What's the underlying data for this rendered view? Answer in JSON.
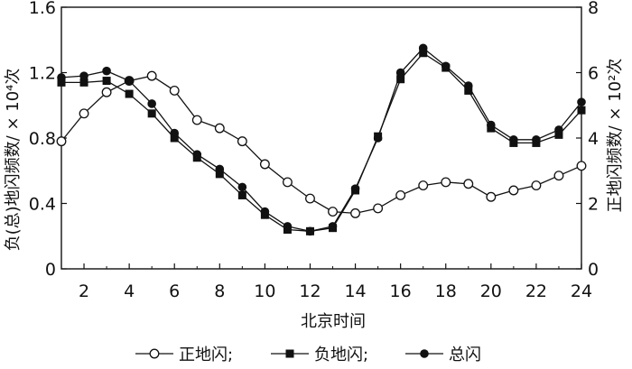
{
  "chart_data": {
    "type": "line",
    "title": "",
    "xlabel": "北京时间",
    "ylabel_left": "负(总)地闪频数/ × 10⁴次",
    "ylabel_right": "正地闪频数/ × 10²次",
    "xlim": [
      1,
      24
    ],
    "ylim_left": [
      0,
      1.6
    ],
    "ylim_right": [
      0,
      8
    ],
    "x_ticks": [
      2,
      4,
      6,
      8,
      10,
      12,
      14,
      16,
      18,
      20,
      22,
      24
    ],
    "x_tick_labels": [
      "2",
      "4",
      "6",
      "8",
      "10",
      "12",
      "14",
      "16",
      "18",
      "20",
      "22",
      "24"
    ],
    "y_left_ticks": [
      0,
      0.4,
      0.8,
      1.2,
      1.6
    ],
    "y_left_tick_labels": [
      "0",
      "0.4",
      "0.8",
      "1.2",
      "1.6"
    ],
    "y_right_ticks": [
      0,
      2,
      4,
      6,
      8
    ],
    "y_right_tick_labels": [
      "0",
      "2",
      "4",
      "6",
      "8"
    ],
    "grid": false,
    "legend_position": "bottom",
    "x": [
      1,
      2,
      3,
      4,
      5,
      6,
      7,
      8,
      9,
      10,
      11,
      12,
      13,
      14,
      15,
      16,
      17,
      18,
      19,
      20,
      21,
      22,
      23,
      24
    ],
    "series": [
      {
        "name": "正地闪;",
        "axis": "right",
        "marker": "open-circle",
        "values": [
          3.9,
          4.75,
          5.4,
          5.75,
          5.9,
          5.45,
          4.55,
          4.3,
          3.9,
          3.2,
          2.65,
          2.15,
          1.75,
          1.7,
          1.85,
          2.25,
          2.55,
          2.65,
          2.6,
          2.2,
          2.4,
          2.55,
          2.85,
          3.15
        ]
      },
      {
        "name": "负地闪;",
        "axis": "left",
        "marker": "filled-square",
        "values": [
          1.14,
          1.14,
          1.15,
          1.07,
          0.95,
          0.8,
          0.68,
          0.58,
          0.45,
          0.33,
          0.24,
          0.23,
          0.25,
          0.48,
          0.81,
          1.16,
          1.32,
          1.23,
          1.09,
          0.86,
          0.77,
          0.77,
          0.82,
          0.97
        ]
      },
      {
        "name": "总闪",
        "axis": "left",
        "marker": "filled-circle",
        "values": [
          1.17,
          1.18,
          1.21,
          1.15,
          1.01,
          0.83,
          0.7,
          0.61,
          0.5,
          0.35,
          0.26,
          0.23,
          0.26,
          0.49,
          0.8,
          1.2,
          1.35,
          1.24,
          1.12,
          0.88,
          0.79,
          0.79,
          0.85,
          1.02
        ]
      }
    ]
  }
}
